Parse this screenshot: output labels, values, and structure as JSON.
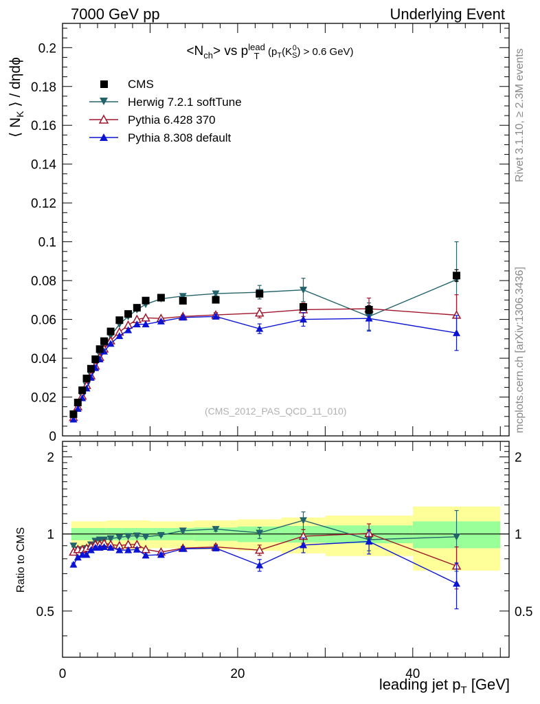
{
  "header": {
    "left": "7000 GeV pp",
    "right": "Underlying Event"
  },
  "side_labels": {
    "rivet": "Rivet 3.1.10, ≥ 2.3M events",
    "mcplots": "mcplots.cern.ch [arXiv:1306.3436]"
  },
  "watermark": "(CMS_2012_PAS_QCD_11_010)",
  "chart_data": [
    {
      "type": "scatter",
      "panel": "main",
      "title": "<Nch> vs pT^lead (pT(K0S) > 0.6 GeV)",
      "title_parts": {
        "a": "<N",
        "a_sub": "ch",
        "b": "> vs p",
        "b_sup": "lead",
        "b_sub": "T",
        "c": " (p",
        "c_sub": "T",
        "d": "(K",
        "d_sup": "0",
        "d_sub": "S",
        "e": ") > 0.6 GeV)"
      },
      "xlabel": "leading jet pT [GeV]",
      "xlabel_parts": {
        "main": "leading jet p",
        "sub": "T",
        "tail": " [GeV]"
      },
      "ylabel": "⟨ NK ⟩ / dηdϕ",
      "ylabel_parts": {
        "a": "⟨ N",
        "sub": "K",
        "b": " ⟩ / dηdϕ"
      },
      "xlim": [
        0,
        51
      ],
      "ylim": [
        0,
        0.2125
      ],
      "x_ticks": [
        0,
        20,
        40
      ],
      "y_ticks": [
        0,
        0.02,
        0.04,
        0.06,
        0.08,
        0.1,
        0.12,
        0.14,
        0.16,
        0.18,
        0.2
      ],
      "y_tick_labels": [
        "0",
        "0.02",
        "0.04",
        "0.06",
        "0.08",
        "0.1",
        "0.12",
        "0.14",
        "0.16",
        "0.18",
        "0.2"
      ],
      "legend_position": "top-left",
      "x": [
        1.25,
        1.75,
        2.25,
        2.75,
        3.25,
        3.75,
        4.25,
        4.75,
        5.5,
        6.5,
        7.5,
        8.5,
        9.5,
        11.25,
        13.75,
        17.5,
        22.5,
        27.5,
        35,
        45
      ],
      "series": [
        {
          "name": "CMS",
          "color": "#000000",
          "marker": "square",
          "values": [
            0.0112,
            0.0172,
            0.0235,
            0.0296,
            0.0346,
            0.0395,
            0.0447,
            0.0488,
            0.0538,
            0.0596,
            0.0628,
            0.066,
            0.0697,
            0.0712,
            0.0696,
            0.0701,
            0.0732,
            0.0664,
            0.065,
            0.0826
          ],
          "errors": [
            0.0004,
            0.0004,
            0.0004,
            0.0004,
            0.0004,
            0.0004,
            0.0004,
            0.0004,
            0.0004,
            0.0004,
            0.0005,
            0.0005,
            0.0005,
            0.0005,
            0.0006,
            0.0008,
            0.0012,
            0.0015,
            0.002,
            0.003
          ]
        },
        {
          "name": "Herwig 7.2.1 softTune",
          "color": "#24636b",
          "marker": "triangle-down",
          "values": [
            0.01,
            0.015,
            0.0205,
            0.026,
            0.0315,
            0.037,
            0.042,
            0.046,
            0.0515,
            0.0575,
            0.0615,
            0.065,
            0.0678,
            0.0706,
            0.072,
            0.0733,
            0.074,
            0.0752,
            0.0615,
            0.0805
          ],
          "errors": [
            0.0004,
            0.0004,
            0.0004,
            0.0004,
            0.0004,
            0.0004,
            0.0004,
            0.0004,
            0.0004,
            0.0004,
            0.0005,
            0.0005,
            0.0005,
            0.0006,
            0.0008,
            0.0012,
            0.0035,
            0.006,
            0.007,
            0.0195
          ]
        },
        {
          "name": "Pythia 6.428 370",
          "color": "#a0142a",
          "marker": "triangle-up-open",
          "values": [
            0.0095,
            0.015,
            0.0205,
            0.026,
            0.031,
            0.036,
            0.0405,
            0.0448,
            0.049,
            0.0535,
            0.057,
            0.06,
            0.0608,
            0.0605,
            0.0615,
            0.0623,
            0.0633,
            0.065,
            0.0655,
            0.0622
          ],
          "errors": [
            0.0004,
            0.0004,
            0.0004,
            0.0004,
            0.0004,
            0.0004,
            0.0004,
            0.0004,
            0.0004,
            0.0004,
            0.0005,
            0.0005,
            0.0005,
            0.0006,
            0.0008,
            0.0012,
            0.0025,
            0.0035,
            0.0055,
            0.0105
          ]
        },
        {
          "name": "Pythia 8.308 default",
          "color": "#0a14d2",
          "marker": "triangle-up",
          "values": [
            0.0085,
            0.014,
            0.0195,
            0.0245,
            0.03,
            0.035,
            0.0395,
            0.0435,
            0.0475,
            0.0515,
            0.0545,
            0.0575,
            0.0575,
            0.059,
            0.061,
            0.0615,
            0.0552,
            0.06,
            0.0605,
            0.053
          ],
          "errors": [
            0.0004,
            0.0004,
            0.0004,
            0.0004,
            0.0004,
            0.0004,
            0.0004,
            0.0004,
            0.0004,
            0.0004,
            0.0005,
            0.0005,
            0.0005,
            0.0006,
            0.0008,
            0.0012,
            0.0025,
            0.0035,
            0.0065,
            0.009
          ]
        }
      ]
    },
    {
      "type": "scatter",
      "panel": "ratio",
      "ylabel": "Ratio to CMS",
      "xlim": [
        0,
        51
      ],
      "ylim": [
        0.33,
        2.3
      ],
      "y_ticks": [
        0.5,
        1,
        2
      ],
      "y_tick_labels": [
        "0.5",
        "1",
        "2"
      ],
      "band_colors": {
        "inner": "#99ff99",
        "outer": "#ffff99"
      },
      "bands": [
        {
          "x0": 1.0,
          "x1": 5.0,
          "inner": 0.055,
          "outer": 0.12
        },
        {
          "x0": 5.0,
          "x1": 10.0,
          "inner": 0.055,
          "outer": 0.13
        },
        {
          "x0": 10.0,
          "x1": 15.0,
          "inner": 0.055,
          "outer": 0.12
        },
        {
          "x0": 15.0,
          "x1": 20.0,
          "inner": 0.06,
          "outer": 0.13
        },
        {
          "x0": 20.0,
          "x1": 25.0,
          "inner": 0.07,
          "outer": 0.14
        },
        {
          "x0": 25.0,
          "x1": 30.0,
          "inner": 0.075,
          "outer": 0.16
        },
        {
          "x0": 30.0,
          "x1": 40.0,
          "inner": 0.08,
          "outer": 0.18
        },
        {
          "x0": 40.0,
          "x1": 50.0,
          "inner": 0.12,
          "outer": 0.28
        }
      ],
      "series": [
        {
          "name": "Herwig 7.2.1 softTune",
          "color": "#24636b",
          "marker": "triangle-down",
          "values": [
            0.9,
            0.87,
            0.87,
            0.88,
            0.91,
            0.94,
            0.95,
            0.95,
            0.96,
            0.97,
            0.98,
            0.985,
            0.975,
            0.99,
            1.03,
            1.045,
            1.01,
            1.13,
            0.95,
            0.975
          ],
          "errors": [
            0.01,
            0.01,
            0.01,
            0.01,
            0.01,
            0.01,
            0.01,
            0.01,
            0.01,
            0.01,
            0.01,
            0.01,
            0.01,
            0.01,
            0.015,
            0.02,
            0.05,
            0.09,
            0.09,
            0.26
          ]
        },
        {
          "name": "Pythia 6.428 370",
          "color": "#a0142a",
          "marker": "triangle-up-open",
          "values": [
            0.85,
            0.87,
            0.87,
            0.88,
            0.895,
            0.91,
            0.91,
            0.92,
            0.91,
            0.9,
            0.91,
            0.91,
            0.87,
            0.85,
            0.88,
            0.89,
            0.865,
            0.98,
            1.005,
            0.75
          ],
          "errors": [
            0.01,
            0.01,
            0.01,
            0.01,
            0.01,
            0.01,
            0.01,
            0.01,
            0.01,
            0.01,
            0.01,
            0.01,
            0.01,
            0.012,
            0.015,
            0.02,
            0.04,
            0.06,
            0.09,
            0.14
          ]
        },
        {
          "name": "Pythia 8.308 default",
          "color": "#0a14d2",
          "marker": "triangle-up",
          "values": [
            0.76,
            0.81,
            0.83,
            0.83,
            0.865,
            0.885,
            0.885,
            0.89,
            0.885,
            0.865,
            0.865,
            0.87,
            0.825,
            0.83,
            0.875,
            0.88,
            0.755,
            0.905,
            0.935,
            0.64
          ],
          "errors": [
            0.01,
            0.01,
            0.01,
            0.01,
            0.01,
            0.01,
            0.01,
            0.01,
            0.01,
            0.01,
            0.01,
            0.01,
            0.01,
            0.012,
            0.015,
            0.02,
            0.04,
            0.06,
            0.1,
            0.13
          ]
        }
      ]
    }
  ]
}
